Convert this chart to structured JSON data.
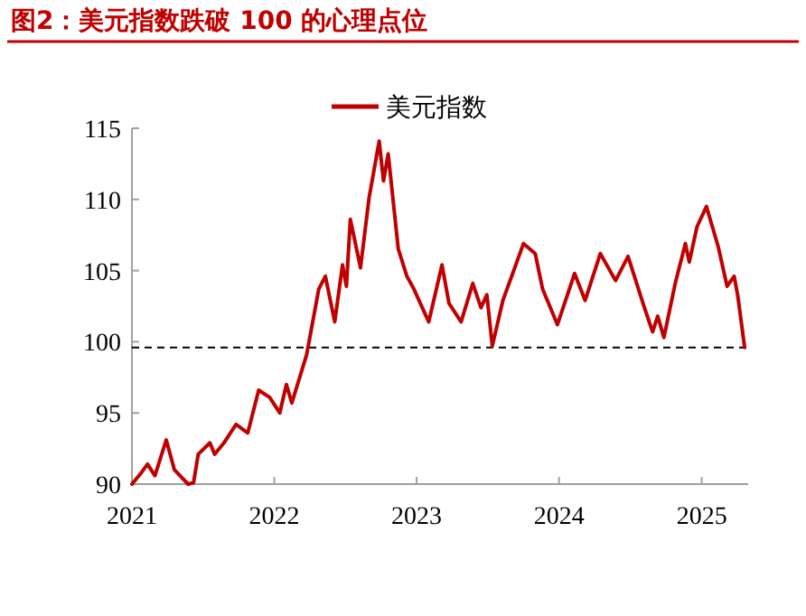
{
  "chart_data": {
    "type": "line",
    "title": "图2：美元指数跌破 100 的心理点位",
    "x": [
      "2021-01-01",
      "2021-01-25",
      "2021-02-10",
      "2021-03-01",
      "2021-03-30",
      "2021-04-20",
      "2021-05-25",
      "2021-06-08",
      "2021-06-20",
      "2021-07-20",
      "2021-08-01",
      "2021-08-25",
      "2021-09-25",
      "2021-10-25",
      "2021-11-22",
      "2021-12-20",
      "2022-01-15",
      "2022-02-01",
      "2022-02-15",
      "2022-03-25",
      "2022-04-25",
      "2022-05-12",
      "2022-06-05",
      "2022-06-25",
      "2022-07-05",
      "2022-07-15",
      "2022-08-10",
      "2022-09-01",
      "2022-09-27",
      "2022-10-08",
      "2022-10-20",
      "2022-11-15",
      "2022-12-07",
      "2022-12-25",
      "2023-02-01",
      "2023-03-07",
      "2023-03-25",
      "2023-04-25",
      "2023-05-25",
      "2023-06-15",
      "2023-06-30",
      "2023-07-14",
      "2023-08-10",
      "2023-10-02",
      "2023-11-01",
      "2023-11-20",
      "2023-12-28",
      "2024-02-10",
      "2024-03-08",
      "2024-04-16",
      "2024-05-25",
      "2024-06-26",
      "2024-08-07",
      "2024-08-28",
      "2024-09-10",
      "2024-09-26",
      "2024-10-25",
      "2024-11-20",
      "2024-11-30",
      "2024-12-20",
      "2025-01-13",
      "2025-01-28",
      "2025-02-12",
      "2025-03-07",
      "2025-03-25",
      "2025-04-03",
      "2025-04-21"
    ],
    "series": [
      {
        "name": "美元指数",
        "color": "#c00000",
        "values": [
          90.0,
          90.8,
          91.4,
          90.6,
          93.1,
          91.0,
          90.0,
          90.1,
          92.1,
          92.9,
          92.1,
          92.9,
          94.2,
          93.6,
          96.6,
          96.1,
          95.0,
          97.0,
          95.7,
          99.1,
          103.7,
          104.6,
          101.4,
          105.4,
          103.9,
          108.6,
          105.2,
          110.1,
          114.1,
          111.3,
          113.2,
          106.5,
          104.6,
          103.7,
          101.4,
          105.4,
          102.7,
          101.4,
          104.1,
          102.4,
          103.3,
          99.7,
          102.9,
          106.9,
          106.2,
          103.7,
          101.2,
          104.8,
          102.9,
          106.2,
          104.3,
          106.0,
          102.4,
          100.7,
          101.8,
          100.3,
          104.1,
          106.9,
          105.6,
          108.1,
          109.5,
          108.1,
          106.7,
          103.9,
          104.6,
          103.3,
          99.6
        ]
      }
    ],
    "xlim": [
      "2021-01-01",
      "2025-04-30"
    ],
    "xticks": [
      {
        "value": "2021-01-01",
        "label": "2021"
      },
      {
        "value": "2022-01-01",
        "label": "2022"
      },
      {
        "value": "2023-01-01",
        "label": "2023"
      },
      {
        "value": "2024-01-01",
        "label": "2024"
      },
      {
        "value": "2025-01-01",
        "label": "2025"
      }
    ],
    "ylim": [
      90,
      115
    ],
    "yticks": [
      90,
      95,
      100,
      105,
      110,
      115
    ],
    "ref_lines": [
      {
        "axis": "y",
        "value": 99.6,
        "color": "#000000",
        "line_style": "dashed"
      }
    ],
    "legend": "top",
    "grid": false
  }
}
